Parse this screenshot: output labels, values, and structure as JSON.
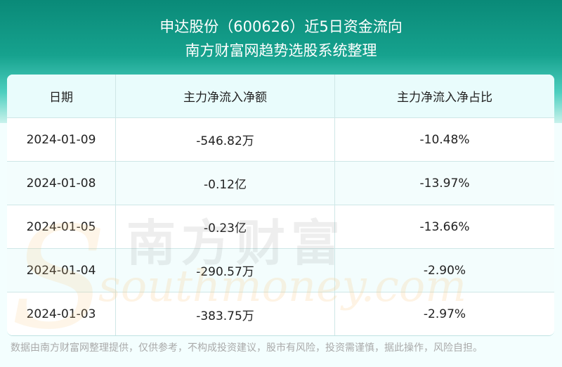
{
  "header": {
    "title": "申达股份（600626）近5日资金流向",
    "subtitle": "南方财富网趋势选股系统整理"
  },
  "table": {
    "columns": [
      "日期",
      "主力净流入净额",
      "主力净流入净占比"
    ],
    "rows": [
      [
        "2024-01-09",
        "-546.82万",
        "-10.48%"
      ],
      [
        "2024-01-08",
        "-0.12亿",
        "-13.97%"
      ],
      [
        "2024-01-05",
        "-0.23亿",
        "-13.66%"
      ],
      [
        "2024-01-04",
        "-290.57万",
        "-2.90%"
      ],
      [
        "2024-01-03",
        "-383.75万",
        "-2.97%"
      ]
    ]
  },
  "watermark": {
    "cn": "南方财富",
    "en": "southmoney.com"
  },
  "footer": "数据由南方财富网整理提供，仅供参考，不构成投资建议，股市有风险，投资需谨慎，据此操作，风险自担。",
  "colors": {
    "header": "#0a8a78",
    "header_row": "#e9fcfc"
  }
}
